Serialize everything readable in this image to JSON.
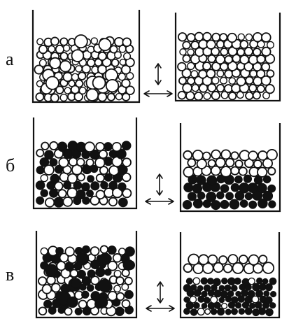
{
  "rows": [
    {
      "label": "а",
      "left_mix": "small-and-large-white",
      "right_mix": "white-only"
    },
    {
      "label": "б",
      "left_mix": "mixed-black-white",
      "right_mix": "white-top-black-bottom"
    },
    {
      "label": "в",
      "left_mix": "mixed-black-white-sizes",
      "right_mix": "white-top-black-small-bottom"
    }
  ],
  "colors": {
    "ink": "#111111",
    "paper": "#ffffff"
  },
  "icons": {
    "vibration": "double-arrow-icon"
  }
}
